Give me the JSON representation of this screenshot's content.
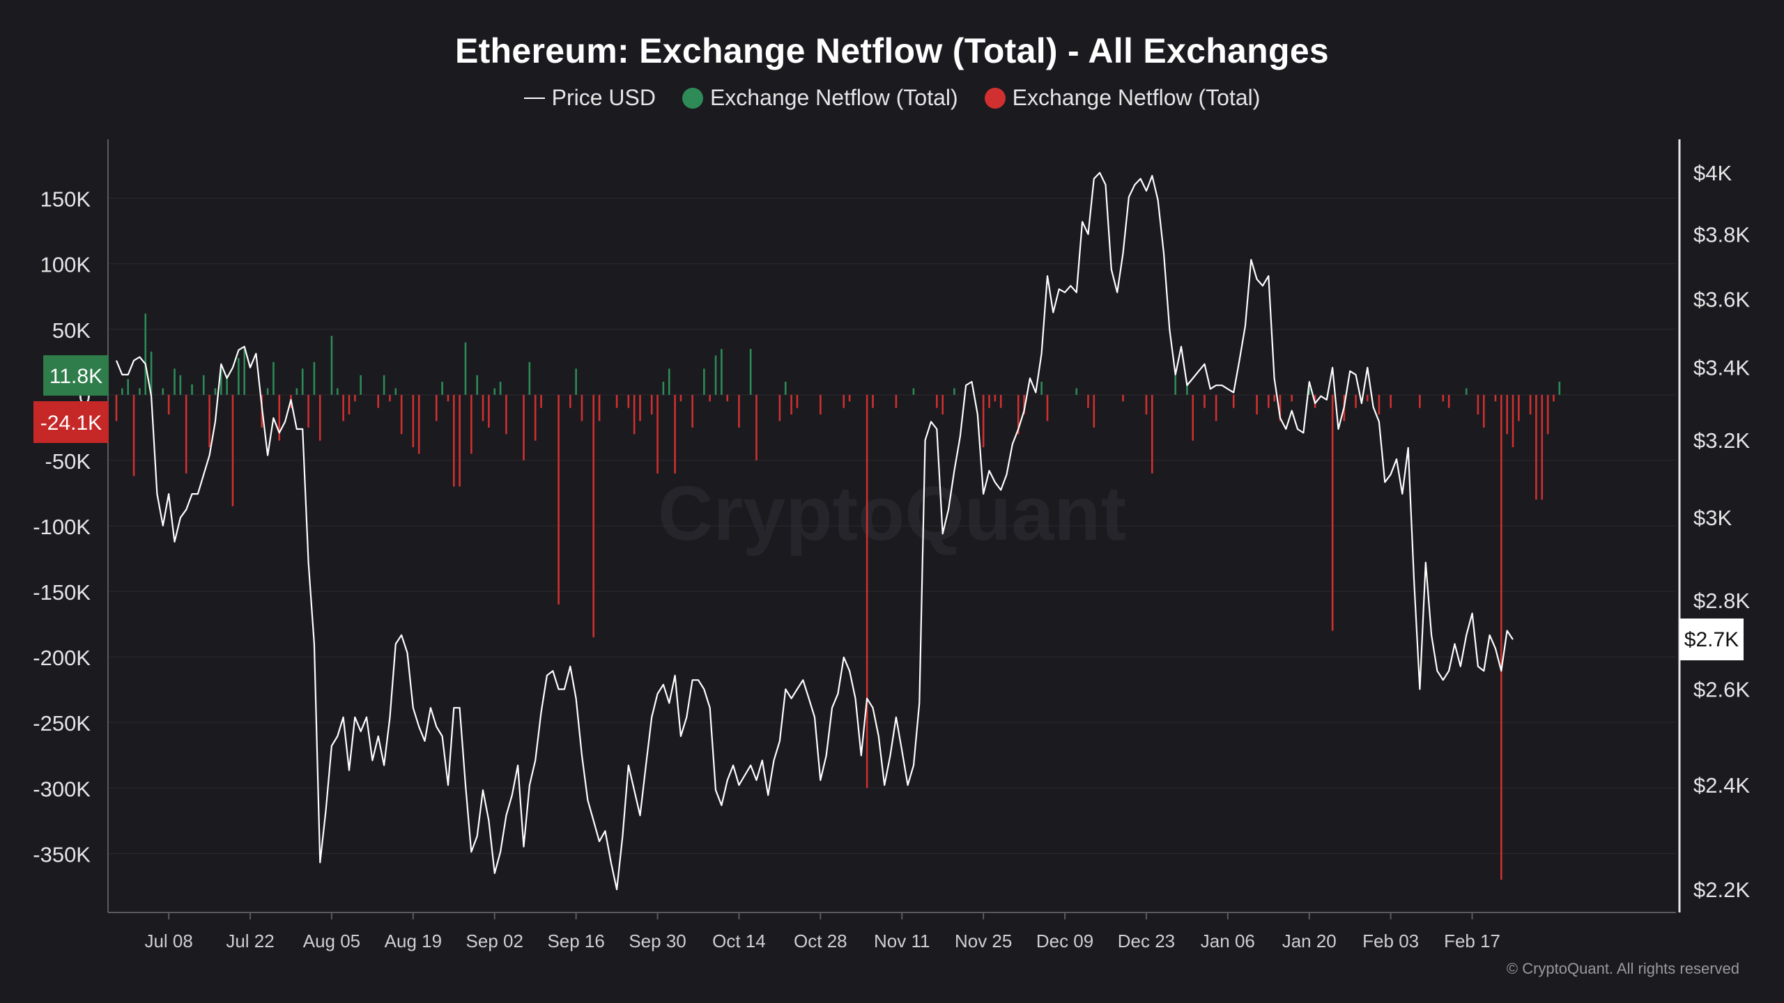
{
  "title": "Ethereum: Exchange Netflow (Total) - All Exchanges",
  "legend": {
    "price_label": "Price USD",
    "inflow_label": "Exchange Netflow (Total)",
    "outflow_label": "Exchange Netflow (Total)"
  },
  "watermark": "CryptoQuant",
  "copyright": "© CryptoQuant. All rights reserved",
  "colors": {
    "background": "#1a1a1f",
    "price_line": "#ffffff",
    "positive_bar": "#2e8b57",
    "negative_bar": "#d03030",
    "grid": "#2a2a30",
    "axis": "#5a5a60"
  },
  "chart_data": {
    "type": "bar",
    "x_start": "2024-06-29",
    "x_ticks": [
      "Jul 08",
      "Jul 22",
      "Aug 05",
      "Aug 19",
      "Sep 02",
      "Sep 16",
      "Sep 30",
      "Oct 14",
      "Oct 28",
      "Nov 11",
      "Nov 25",
      "Dec 09",
      "Dec 23",
      "Jan 06",
      "Jan 20",
      "Feb 03",
      "Feb 17"
    ],
    "x_tick_dates": [
      "2024-07-08",
      "2024-07-22",
      "2024-08-05",
      "2024-08-19",
      "2024-09-02",
      "2024-09-16",
      "2024-09-30",
      "2024-10-14",
      "2024-10-28",
      "2024-11-11",
      "2024-11-25",
      "2024-12-09",
      "2024-12-23",
      "2025-01-06",
      "2025-01-20",
      "2025-02-03",
      "2025-02-17"
    ],
    "left_axis": {
      "ticks": [
        "150K",
        "100K",
        "50K",
        "0",
        "-50K",
        "-100K",
        "-150K",
        "-200K",
        "-250K",
        "-300K",
        "-350K"
      ],
      "tick_values": [
        150000,
        100000,
        50000,
        0,
        -50000,
        -100000,
        -150000,
        -200000,
        -250000,
        -300000,
        -350000
      ],
      "range": [
        -395000,
        195000
      ]
    },
    "right_axis": {
      "ticks": [
        "$4K",
        "$3.8K",
        "$3.6K",
        "$3.4K",
        "$3.2K",
        "$3K",
        "$2.8K",
        "$2.6K",
        "$2.4K",
        "$2.2K"
      ],
      "tick_values": [
        4000,
        3800,
        3600,
        3400,
        3200,
        3000,
        2800,
        2600,
        2400,
        2200
      ],
      "scale": "log"
    },
    "current_badges": {
      "netflow_positive": "11.8K",
      "netflow_negative": "-24.1K",
      "price": "$2.7K"
    },
    "netflow_daily": [
      -20000,
      5000,
      12000,
      -62000,
      5000,
      62000,
      33000,
      0,
      5000,
      -15000,
      20000,
      15000,
      -60000,
      8000,
      0,
      15000,
      -40000,
      5000,
      20000,
      15000,
      -85000,
      28000,
      35000,
      0,
      0,
      -25000,
      5000,
      25000,
      -35000,
      0,
      -10000,
      5000,
      20000,
      -25000,
      25000,
      -35000,
      0,
      45000,
      5000,
      -20000,
      -15000,
      -5000,
      15000,
      0,
      0,
      -10000,
      15000,
      -5000,
      5000,
      -30000,
      0,
      -40000,
      -45000,
      0,
      0,
      -20000,
      10000,
      -5000,
      -70000,
      -70000,
      40000,
      -45000,
      15000,
      -20000,
      -25000,
      5000,
      10000,
      -30000,
      0,
      0,
      -50000,
      25000,
      -35000,
      -10000,
      0,
      0,
      -160000,
      0,
      -10000,
      20000,
      -20000,
      0,
      -185000,
      -20000,
      0,
      0,
      -10000,
      0,
      -10000,
      -30000,
      -20000,
      0,
      -15000,
      -60000,
      10000,
      20000,
      -60000,
      -5000,
      0,
      -25000,
      0,
      20000,
      -5000,
      30000,
      35000,
      -5000,
      0,
      -25000,
      0,
      35000,
      -50000,
      0,
      0,
      0,
      -20000,
      10000,
      -15000,
      -10000,
      0,
      0,
      0,
      -15000,
      0,
      0,
      0,
      -10000,
      -5000,
      0,
      0,
      -300000,
      -10000,
      0,
      0,
      0,
      -10000,
      0,
      0,
      5000,
      0,
      0,
      0,
      -10000,
      -15000,
      0,
      5000,
      0,
      0,
      0,
      0,
      -40000,
      -10000,
      -5000,
      -10000,
      0,
      0,
      -30000,
      -15000,
      0,
      0,
      10000,
      -20000,
      0,
      0,
      0,
      0,
      5000,
      0,
      -10000,
      -25000,
      0,
      0,
      0,
      0,
      -5000,
      0,
      0,
      0,
      -15000,
      -60000,
      0,
      0,
      0,
      15000,
      0,
      10000,
      -35000,
      0,
      -10000,
      0,
      -20000,
      0,
      0,
      -10000,
      0,
      0,
      0,
      -15000,
      0,
      -10000,
      -5000,
      -20000,
      0,
      -5000,
      0,
      0,
      5000,
      -10000,
      0,
      0,
      -180000,
      0,
      -20000,
      0,
      -10000,
      0,
      -5000,
      0,
      -15000,
      0,
      -10000,
      0,
      0,
      0,
      0,
      -10000,
      0,
      0,
      0,
      -5000,
      -10000,
      0,
      0,
      5000,
      0,
      -15000,
      -25000,
      0,
      -5000,
      -370000,
      -30000,
      -40000,
      -20000,
      0,
      -15000,
      -80000,
      -80000,
      -30000,
      -5000,
      10000,
      0
    ],
    "price_daily": [
      3420,
      3380,
      3380,
      3420,
      3430,
      3410,
      3320,
      3060,
      2980,
      3060,
      2940,
      3000,
      3020,
      3060,
      3060,
      3110,
      3160,
      3250,
      3410,
      3370,
      3400,
      3450,
      3460,
      3400,
      3440,
      3290,
      3160,
      3260,
      3220,
      3250,
      3310,
      3230,
      3230,
      2890,
      2700,
      2250,
      2350,
      2480,
      2500,
      2540,
      2430,
      2540,
      2510,
      2540,
      2450,
      2500,
      2440,
      2540,
      2700,
      2720,
      2680,
      2560,
      2520,
      2490,
      2560,
      2520,
      2500,
      2400,
      2560,
      2560,
      2400,
      2270,
      2300,
      2390,
      2330,
      2230,
      2270,
      2340,
      2380,
      2440,
      2280,
      2400,
      2450,
      2550,
      2630,
      2640,
      2600,
      2600,
      2650,
      2580,
      2460,
      2370,
      2330,
      2290,
      2310,
      2250,
      2200,
      2300,
      2440,
      2390,
      2340,
      2440,
      2540,
      2590,
      2610,
      2570,
      2630,
      2500,
      2540,
      2620,
      2620,
      2600,
      2560,
      2390,
      2360,
      2410,
      2440,
      2400,
      2420,
      2440,
      2410,
      2450,
      2380,
      2450,
      2490,
      2600,
      2580,
      2600,
      2620,
      2580,
      2540,
      2410,
      2460,
      2560,
      2590,
      2670,
      2640,
      2580,
      2460,
      2580,
      2560,
      2500,
      2400,
      2460,
      2540,
      2470,
      2400,
      2440,
      2570,
      3200,
      3250,
      3230,
      2960,
      3020,
      3120,
      3210,
      3350,
      3360,
      3270,
      3060,
      3120,
      3090,
      3070,
      3110,
      3190,
      3230,
      3280,
      3370,
      3330,
      3440,
      3670,
      3560,
      3630,
      3620,
      3640,
      3620,
      3840,
      3800,
      3980,
      4000,
      3960,
      3690,
      3620,
      3740,
      3920,
      3960,
      3980,
      3940,
      3990,
      3910,
      3740,
      3510,
      3380,
      3460,
      3350,
      3370,
      3390,
      3410,
      3340,
      3350,
      3350,
      3340,
      3330,
      3420,
      3520,
      3720,
      3660,
      3640,
      3670,
      3370,
      3260,
      3230,
      3280,
      3230,
      3220,
      3360,
      3300,
      3320,
      3310,
      3400,
      3230,
      3290,
      3390,
      3380,
      3300,
      3400,
      3290,
      3250,
      3090,
      3110,
      3150,
      3060,
      3180,
      2850,
      2600,
      2890,
      2720,
      2640,
      2620,
      2640,
      2700,
      2650,
      2720,
      2770,
      2650,
      2640,
      2720,
      2690,
      2640,
      2730,
      2710
    ]
  }
}
